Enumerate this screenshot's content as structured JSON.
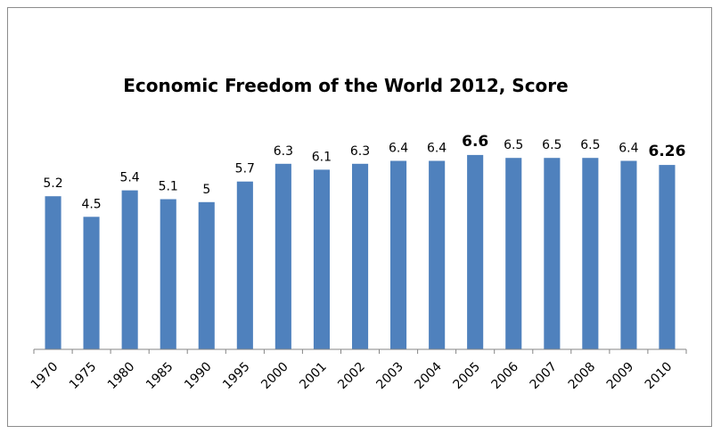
{
  "chart_data": {
    "type": "bar",
    "title": "Economic Freedom of the World 2012, Score",
    "xlabel": "",
    "ylabel": "",
    "ylim": [
      0,
      6.9
    ],
    "grid": false,
    "legend": "none",
    "bar_color": "#4f81bd",
    "categories": [
      "1970",
      "1975",
      "1980",
      "1985",
      "1990",
      "1995",
      "2000",
      "2001",
      "2002",
      "2003",
      "2004",
      "2005",
      "2006",
      "2007",
      "2008",
      "2009",
      "2010"
    ],
    "values": [
      5.2,
      4.5,
      5.4,
      5.1,
      5.0,
      5.7,
      6.3,
      6.1,
      6.3,
      6.4,
      6.4,
      6.6,
      6.5,
      6.5,
      6.5,
      6.4,
      6.26
    ],
    "labels": [
      "5.2",
      "4.5",
      "5.4",
      "5.1",
      "5",
      "5.7",
      "6.3",
      "6.1",
      "6.3",
      "6.4",
      "6.4",
      "6.6",
      "6.5",
      "6.5",
      "6.5",
      "6.4",
      "6.26"
    ],
    "emphasized": [
      "2005",
      "2010"
    ]
  }
}
